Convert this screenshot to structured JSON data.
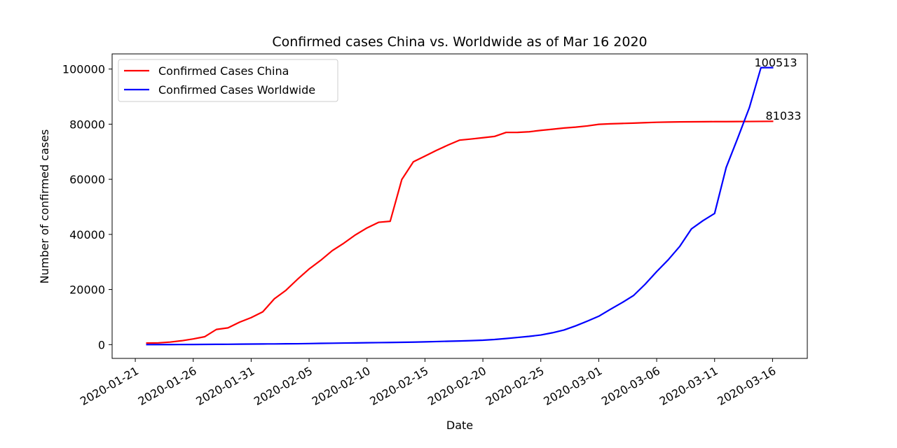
{
  "chart_data": {
    "type": "line",
    "title": "Confirmed cases China vs. Worldwide as of Mar 16 2020",
    "xlabel": "Date",
    "ylabel": "Number of confirmed cases",
    "x_tick_labels": [
      "2020-01-21",
      "2020-01-26",
      "2020-01-31",
      "2020-02-05",
      "2020-02-10",
      "2020-02-15",
      "2020-02-20",
      "2020-02-25",
      "2020-03-01",
      "2020-03-06",
      "2020-03-11",
      "2020-03-16"
    ],
    "y_ticks": [
      0,
      20000,
      40000,
      60000,
      80000,
      100000
    ],
    "y_tick_labels": [
      "0",
      "20000",
      "40000",
      "60000",
      "80000",
      "100000"
    ],
    "xlim": [
      "2020-01-19",
      "2020-03-19"
    ],
    "ylim": [
      -5000,
      105500
    ],
    "grid": false,
    "legend_position": "upper-left",
    "x": [
      "2020-01-22",
      "2020-01-23",
      "2020-01-24",
      "2020-01-25",
      "2020-01-26",
      "2020-01-27",
      "2020-01-28",
      "2020-01-29",
      "2020-01-30",
      "2020-01-31",
      "2020-02-01",
      "2020-02-02",
      "2020-02-03",
      "2020-02-04",
      "2020-02-05",
      "2020-02-06",
      "2020-02-07",
      "2020-02-08",
      "2020-02-09",
      "2020-02-10",
      "2020-02-11",
      "2020-02-12",
      "2020-02-13",
      "2020-02-14",
      "2020-02-15",
      "2020-02-16",
      "2020-02-17",
      "2020-02-18",
      "2020-02-19",
      "2020-02-20",
      "2020-02-21",
      "2020-02-22",
      "2020-02-23",
      "2020-02-24",
      "2020-02-25",
      "2020-02-26",
      "2020-02-27",
      "2020-02-28",
      "2020-02-29",
      "2020-03-01",
      "2020-03-02",
      "2020-03-03",
      "2020-03-04",
      "2020-03-05",
      "2020-03-06",
      "2020-03-07",
      "2020-03-08",
      "2020-03-09",
      "2020-03-10",
      "2020-03-11",
      "2020-03-12",
      "2020-03-13",
      "2020-03-14",
      "2020-03-15",
      "2020-03-16"
    ],
    "series": [
      {
        "name": "Confirmed Cases China",
        "color": "#ff0000",
        "values": [
          548,
          643,
          920,
          1406,
          2075,
          2877,
          5509,
          6087,
          8141,
          9802,
          11891,
          16630,
          19716,
          23707,
          27440,
          30587,
          34110,
          36814,
          39829,
          42354,
          44386,
          44759,
          59895,
          66358,
          68413,
          70513,
          72434,
          74211,
          74619,
          75077,
          75550,
          77001,
          77022,
          77241,
          77754,
          78166,
          78600,
          78928,
          79356,
          79932,
          80136,
          80261,
          80386,
          80537,
          80690,
          80770,
          80823,
          80860,
          80887,
          80921,
          80932,
          80945,
          80977,
          81003,
          81033
        ]
      },
      {
        "name": "Confirmed Cases Worldwide",
        "color": "#0000ff",
        "values": [
          7,
          10,
          21,
          34,
          55,
          80,
          106,
          130,
          171,
          211,
          244,
          262,
          298,
          318,
          386,
          458,
          508,
          568,
          618,
          692,
          732,
          784,
          834,
          904,
          1007,
          1108,
          1232,
          1327,
          1445,
          1600,
          1850,
          2210,
          2600,
          3000,
          3500,
          4300,
          5300,
          6800,
          8500,
          10300,
          12800,
          15200,
          17800,
          21900,
          26500,
          30800,
          35700,
          42000,
          45000,
          47600,
          64300,
          75000,
          86000,
          100513,
          100513
        ]
      }
    ],
    "annotations": [
      {
        "text": "100513",
        "x": "2020-03-16",
        "y": 100513
      },
      {
        "text": "81033",
        "x": "2020-03-16",
        "y": 81033
      }
    ]
  }
}
